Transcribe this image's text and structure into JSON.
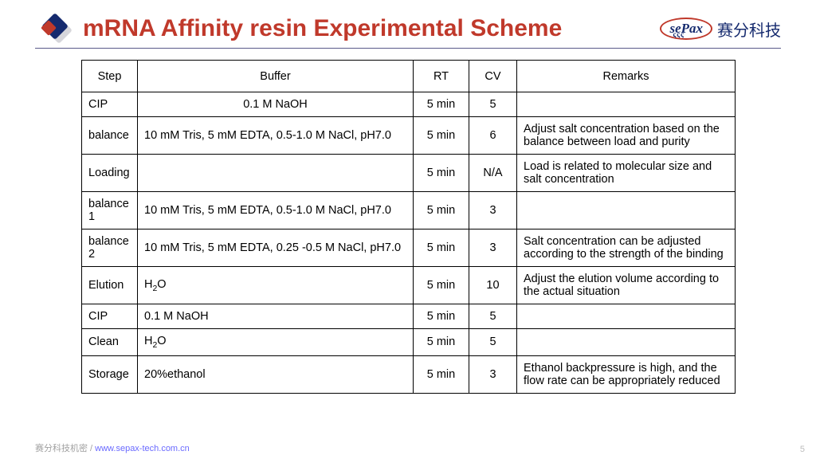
{
  "title": "mRNA Affinity resin Experimental Scheme",
  "brand_latin": "sePax",
  "brand_sub": "ςςς",
  "brand_cn": "赛分科技",
  "table": {
    "columns": [
      "Step",
      "Buffer",
      "RT",
      "CV",
      "Remarks"
    ],
    "col_align": [
      "center",
      "center",
      "center",
      "center",
      "center"
    ],
    "rows": [
      {
        "step": "CIP",
        "buffer": "0.1 M NaOH",
        "buffer_align": "center",
        "rt": "5 min",
        "cv": "5",
        "remarks": ""
      },
      {
        "step": "balance",
        "buffer": "10 mM Tris, 5 mM EDTA, 0.5-1.0 M NaCl, pH7.0",
        "buffer_align": "left",
        "rt": "5 min",
        "cv": "6",
        "remarks": "Adjust salt concentration based on the balance between load and purity"
      },
      {
        "step": "Loading",
        "buffer": "",
        "buffer_align": "left",
        "rt": "5 min",
        "cv": "N/A",
        "remarks": "Load is related to molecular size and salt concentration"
      },
      {
        "step": "balance 1",
        "buffer": "10 mM Tris, 5 mM EDTA, 0.5-1.0 M NaCl, pH7.0",
        "buffer_align": "left",
        "rt": "5 min",
        "cv": "3",
        "remarks": ""
      },
      {
        "step": "balance 2",
        "buffer": "10 mM Tris, 5 mM EDTA, 0.25 -0.5 M NaCl, pH7.0",
        "buffer_align": "left",
        "rt": "5 min",
        "cv": "3",
        "remarks": "Salt concentration can be adjusted according to the strength of the binding"
      },
      {
        "step": "Elution",
        "buffer_html": "H<span class=\"sub2\">2</span>O",
        "buffer_align": "left",
        "rt": "5 min",
        "cv": "10",
        "remarks": "Adjust the elution volume according to the actual situation"
      },
      {
        "step": "CIP",
        "buffer": "0.1 M NaOH",
        "buffer_align": "left",
        "rt": "5 min",
        "cv": "5",
        "remarks": ""
      },
      {
        "step": "Clean",
        "buffer_html": "H<span class=\"sub2\">2</span>O",
        "buffer_align": "left",
        "rt": "5 min",
        "cv": "5",
        "remarks": ""
      },
      {
        "step": "Storage",
        "buffer": "20%ethanol",
        "buffer_align": "left",
        "rt": "5 min",
        "cv": "3",
        "remarks": "Ethanol backpressure is high, and the flow rate can be appropriately reduced"
      }
    ]
  },
  "footer_cn": "赛分科技机密 / ",
  "footer_url": "www.sepax-tech.com.cn",
  "page_number": "5"
}
